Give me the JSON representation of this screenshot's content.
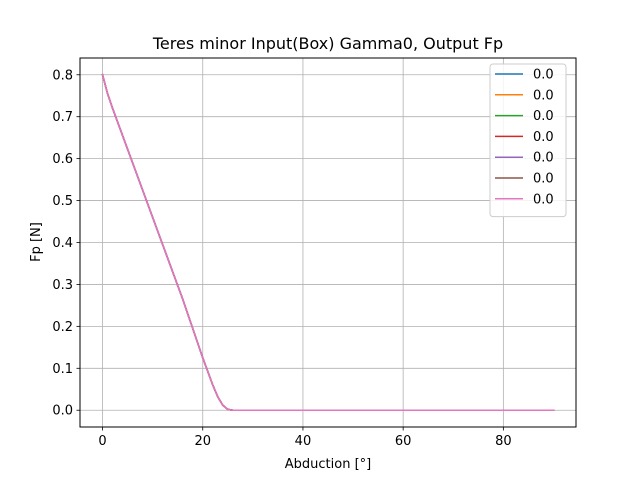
{
  "chart_data": {
    "type": "line",
    "title": "Teres minor Input(Box) Gamma0, Output Fp",
    "xlabel": "Abduction [°]",
    "ylabel": "Fp [N]",
    "xlim": [
      -4.5,
      94.5
    ],
    "ylim": [
      -0.04,
      0.84
    ],
    "xticks": [
      0,
      20,
      40,
      60,
      80
    ],
    "xtick_labels": [
      "0",
      "20",
      "40",
      "60",
      "80"
    ],
    "yticks": [
      0.0,
      0.1,
      0.2,
      0.3,
      0.4,
      0.5,
      0.6,
      0.7,
      0.8
    ],
    "ytick_labels": [
      "0.0",
      "0.1",
      "0.2",
      "0.3",
      "0.4",
      "0.5",
      "0.6",
      "0.7",
      "0.8"
    ],
    "grid": true,
    "legend_position": "top-right",
    "x": [
      0,
      1,
      2,
      4,
      6,
      8,
      10,
      12,
      14,
      16,
      18,
      20,
      22,
      23,
      24,
      25,
      26,
      27,
      30,
      40,
      50,
      60,
      70,
      80,
      90
    ],
    "series": [
      {
        "name": "0.0",
        "color": "#1f77b4",
        "values": [
          0.8,
          0.755,
          0.72,
          0.655,
          0.59,
          0.525,
          0.46,
          0.395,
          0.33,
          0.265,
          0.195,
          0.125,
          0.06,
          0.032,
          0.012,
          0.002,
          0.0,
          0.0,
          0.0,
          0.0,
          0.0,
          0.0,
          0.0,
          0.0,
          0.0
        ]
      },
      {
        "name": "0.0",
        "color": "#ff7f0e",
        "values": [
          0.8,
          0.755,
          0.72,
          0.655,
          0.59,
          0.525,
          0.46,
          0.395,
          0.33,
          0.265,
          0.195,
          0.125,
          0.06,
          0.032,
          0.012,
          0.002,
          0.0,
          0.0,
          0.0,
          0.0,
          0.0,
          0.0,
          0.0,
          0.0,
          0.0
        ]
      },
      {
        "name": "0.0",
        "color": "#2ca02c",
        "values": [
          0.8,
          0.755,
          0.72,
          0.655,
          0.59,
          0.525,
          0.46,
          0.395,
          0.33,
          0.265,
          0.195,
          0.125,
          0.06,
          0.032,
          0.012,
          0.002,
          0.0,
          0.0,
          0.0,
          0.0,
          0.0,
          0.0,
          0.0,
          0.0,
          0.0
        ]
      },
      {
        "name": "0.0",
        "color": "#d62728",
        "values": [
          0.8,
          0.755,
          0.72,
          0.655,
          0.59,
          0.525,
          0.46,
          0.395,
          0.33,
          0.265,
          0.195,
          0.125,
          0.06,
          0.032,
          0.012,
          0.002,
          0.0,
          0.0,
          0.0,
          0.0,
          0.0,
          0.0,
          0.0,
          0.0,
          0.0
        ]
      },
      {
        "name": "0.0",
        "color": "#9467bd",
        "values": [
          0.8,
          0.755,
          0.72,
          0.655,
          0.59,
          0.525,
          0.46,
          0.395,
          0.33,
          0.265,
          0.195,
          0.125,
          0.06,
          0.032,
          0.012,
          0.002,
          0.0,
          0.0,
          0.0,
          0.0,
          0.0,
          0.0,
          0.0,
          0.0,
          0.0
        ]
      },
      {
        "name": "0.0",
        "color": "#8c564b",
        "values": [
          0.8,
          0.755,
          0.72,
          0.655,
          0.59,
          0.525,
          0.46,
          0.395,
          0.33,
          0.265,
          0.195,
          0.125,
          0.06,
          0.032,
          0.012,
          0.002,
          0.0,
          0.0,
          0.0,
          0.0,
          0.0,
          0.0,
          0.0,
          0.0,
          0.0
        ]
      },
      {
        "name": "0.0",
        "color": "#e377c2",
        "values": [
          0.8,
          0.755,
          0.72,
          0.655,
          0.59,
          0.525,
          0.46,
          0.395,
          0.33,
          0.265,
          0.195,
          0.125,
          0.06,
          0.032,
          0.012,
          0.002,
          0.0,
          0.0,
          0.0,
          0.0,
          0.0,
          0.0,
          0.0,
          0.0,
          0.0
        ]
      }
    ]
  }
}
